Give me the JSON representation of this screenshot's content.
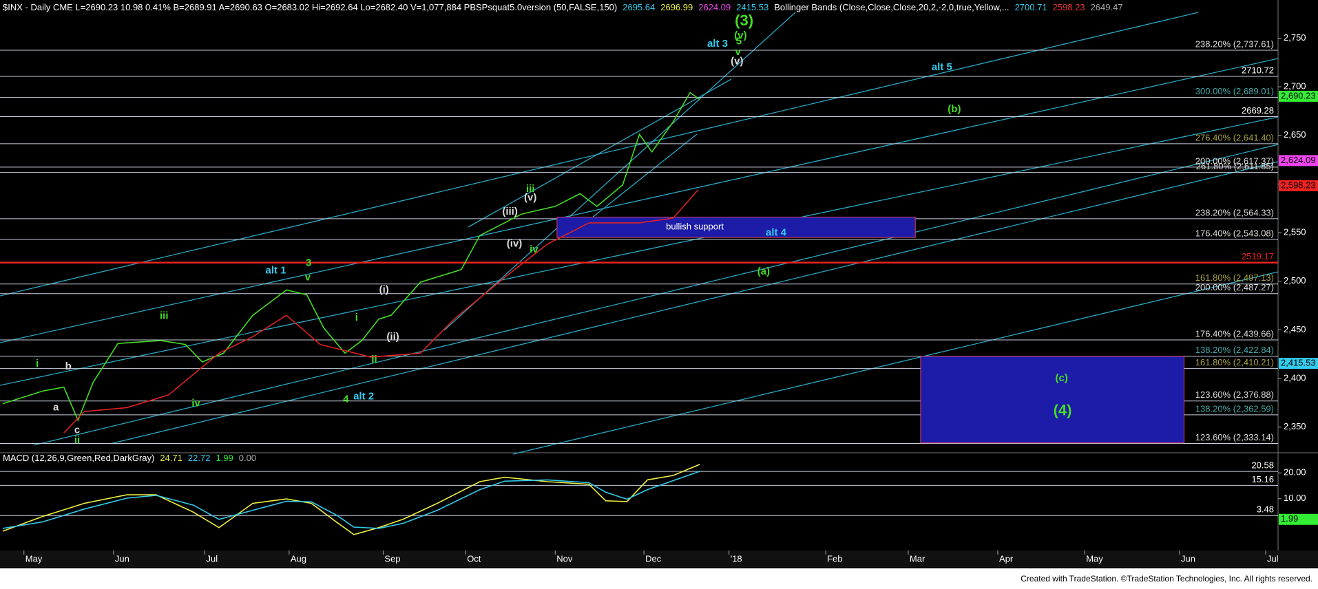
{
  "chart_data": [
    {
      "type": "line",
      "header": [
        {
          "text": "$INX - Daily CME  L=2690.23  10.98  0.41%  B=2689.91  A=2690.63  O=2683.02  Hi=2692.64  Lo=2682.40  V=1,077,884  PBSPsquat5.0version (50,FALSE,150)",
          "color": "#ffffff"
        },
        {
          "text": "2695.64",
          "color": "#33ccee"
        },
        {
          "text": "2696.99",
          "color": "#eeee44"
        },
        {
          "text": "2624.09",
          "color": "#ee44ee"
        },
        {
          "text": "2415.53",
          "color": "#33ccee"
        },
        {
          "text": "Bollinger Bands (Close,Close,Close,20,2,-2,0,true,Yellow,...",
          "color": "#ffffff"
        },
        {
          "text": "2700.71",
          "color": "#33ccee"
        },
        {
          "text": "2598.23",
          "color": "#ee3333"
        },
        {
          "text": "2649.47",
          "color": "#aaaaaa"
        }
      ],
      "xlim": [
        -0.27,
        14.14
      ],
      "xticks": [
        {
          "value": 0,
          "label": "May"
        },
        {
          "value": 1.01,
          "label": "Jun"
        },
        {
          "value": 2.04,
          "label": "Jul"
        },
        {
          "value": 2.99,
          "label": "Aug"
        },
        {
          "value": 4.05,
          "label": "Sep"
        },
        {
          "value": 4.98,
          "label": "Oct"
        },
        {
          "value": 5.99,
          "label": "Nov"
        },
        {
          "value": 6.99,
          "label": "Dec"
        },
        {
          "value": 7.95,
          "label": "'18"
        },
        {
          "value": 9.04,
          "label": "Feb"
        },
        {
          "value": 9.97,
          "label": "Mar"
        },
        {
          "value": 10.98,
          "label": "Apr"
        },
        {
          "value": 11.96,
          "label": "May"
        },
        {
          "value": 13.03,
          "label": "Jun"
        },
        {
          "value": 14.0,
          "label": "Jul"
        }
      ],
      "ylim": [
        2325,
        2785
      ],
      "yticks": [
        {
          "value": 2350,
          "label": "2,350"
        },
        {
          "value": 2400,
          "label": "2,400"
        },
        {
          "value": 2450,
          "label": "2,450"
        },
        {
          "value": 2500,
          "label": "2,500"
        },
        {
          "value": 2550,
          "label": "2,550"
        },
        {
          "value": 2600,
          "label": "2,600"
        },
        {
          "value": 2650,
          "label": "2,650"
        },
        {
          "value": 2700,
          "label": "2,700"
        },
        {
          "value": 2750,
          "label": "2,750"
        }
      ],
      "series": [
        {
          "color": "#44dd22",
          "x": [
            -0.24,
            0.21,
            0.45,
            0.61,
            0.78,
            1.06,
            1.54,
            1.82,
            2.01,
            2.25,
            2.58,
            2.96,
            3.19,
            3.38,
            3.62,
            3.81,
            4.0,
            4.14,
            4.47,
            4.93,
            5.14,
            5.61,
            5.99,
            6.27,
            6.46,
            6.75,
            6.94,
            7.08,
            7.32,
            7.51,
            7.62
          ],
          "values": [
            2374,
            2387,
            2391,
            2357,
            2396,
            2436,
            2439,
            2435,
            2417,
            2426,
            2465,
            2491,
            2486,
            2452,
            2426,
            2439,
            2461,
            2465,
            2499,
            2512,
            2547,
            2569,
            2577,
            2590,
            2577,
            2599,
            2651,
            2633,
            2664,
            2694,
            2687
          ]
        },
        {
          "color": "#dd2222",
          "x": [
            0.45,
            0.68,
            1.16,
            1.63,
            2.2,
            2.58,
            2.96,
            3.34,
            3.91,
            4.47,
            4.85,
            5.42,
            5.9,
            6.37,
            6.94,
            7.32,
            7.6
          ],
          "values": [
            2344,
            2366,
            2370,
            2383,
            2426,
            2443,
            2465,
            2435,
            2422,
            2426,
            2461,
            2504,
            2538,
            2560,
            2560,
            2565,
            2594
          ]
        }
      ],
      "levels": [
        {
          "value": 2737.61,
          "label": "238.20% (2,737.61)",
          "color": "#dddddd"
        },
        {
          "value": 2710.72,
          "label": "2710.72",
          "color": "#ffffff"
        },
        {
          "value": 2689.01,
          "label": "300.00% (2,689.01)",
          "color": "#44aaaa"
        },
        {
          "value": 2669.28,
          "label": "2669.28",
          "color": "#ffffff"
        },
        {
          "value": 2641.4,
          "label": "276.40% (2,641.40)",
          "color": "#aaa040"
        },
        {
          "value": 2617.37,
          "label": "200.00% (2,617.37)",
          "color": "#dddddd"
        },
        {
          "value": 2611.85,
          "label": "261.80% (2,611.85)",
          "color": "#dddddd"
        },
        {
          "value": 2564.33,
          "label": "238.20% (2,564.33)",
          "color": "#dddddd"
        },
        {
          "value": 2543.08,
          "label": "176.40% (2,543.08)",
          "color": "#dddddd"
        },
        {
          "value": 2519.17,
          "label": "2519.17",
          "color": "#ee2222"
        },
        {
          "value": 2497.13,
          "label": "161.80% (2,497.13)",
          "color": "#aaa040"
        },
        {
          "value": 2487.27,
          "label": "200.00% (2,487.27)",
          "color": "#dddddd"
        },
        {
          "value": 2439.66,
          "label": "176.40% (2,439.66)",
          "color": "#dddddd"
        },
        {
          "value": 2422.84,
          "label": "138.20% (2,422.84)",
          "color": "#44aaaa"
        },
        {
          "value": 2410.21,
          "label": "161.80% (2,410.21)",
          "color": "#aaa040"
        },
        {
          "value": 2376.88,
          "label": "123.60% (2,376.88)",
          "color": "#dddddd"
        },
        {
          "value": 2362.59,
          "label": "138.20% (2,362.59)",
          "color": "#44aaaa"
        },
        {
          "value": 2333.14,
          "label": "123.60% (2,333.14)",
          "color": "#dddddd"
        }
      ],
      "tags": [
        {
          "value": 2690.23,
          "label": "2,690.23",
          "color": "#33ee33"
        },
        {
          "value": 2624.09,
          "label": "2,624.09",
          "color": "#ee44ee"
        },
        {
          "value": 2598.23,
          "label": "2,598.23",
          "color": "#ee2222"
        },
        {
          "value": 2415.53,
          "label": "2,415.53",
          "color": "#33ccee"
        }
      ],
      "boxes": [
        {
          "x": [
            6.01,
            10.05
          ],
          "y": [
            2545,
            2566
          ],
          "label": "bullish support"
        },
        {
          "x": [
            10.11,
            13.08
          ],
          "y": [
            2333.7,
            2422.8
          ]
        }
      ],
      "annotations": [
        {
          "text": "(3)",
          "x": 8.12,
          "y": 2767.3,
          "color": "#44dd22"
        },
        {
          "text": "(v)",
          "x": 8.08,
          "y": 2752.6,
          "color": "#44dd22"
        },
        {
          "text": "5",
          "x": 8.06,
          "y": 2746.5,
          "color": "#44dd22"
        },
        {
          "text": "alt 3",
          "x": 7.82,
          "y": 2744.0,
          "color": "#33ccee"
        },
        {
          "text": "v",
          "x": 8.05,
          "y": 2735.3,
          "color": "#44dd22"
        },
        {
          "text": "(v)",
          "x": 8.04,
          "y": 2725.8,
          "color": "#dddddd"
        },
        {
          "text": "alt 5",
          "x": 10.35,
          "y": 2719.8,
          "color": "#33ccee"
        },
        {
          "text": "(b)",
          "x": 10.49,
          "y": 2676.6,
          "color": "#44dd22"
        },
        {
          "text": "iii",
          "x": 5.71,
          "y": 2594.5,
          "color": "#44dd22"
        },
        {
          "text": "(v)",
          "x": 5.71,
          "y": 2585.9,
          "color": "#dddddd"
        },
        {
          "text": "(iii)",
          "x": 5.48,
          "y": 2571.2,
          "color": "#dddddd"
        },
        {
          "text": "(iv)",
          "x": 5.53,
          "y": 2538.3,
          "color": "#dddddd"
        },
        {
          "text": "iv",
          "x": 5.75,
          "y": 2532.3,
          "color": "#44dd22"
        },
        {
          "text": "alt 4",
          "x": 8.48,
          "y": 2549.6,
          "color": "#33ccee"
        },
        {
          "text": "(a)",
          "x": 8.34,
          "y": 2509.8,
          "color": "#44dd22"
        },
        {
          "text": "alt 1",
          "x": 2.84,
          "y": 2510.7,
          "color": "#33ccee"
        },
        {
          "text": "3",
          "x": 3.21,
          "y": 2518.5,
          "color": "#44dd22"
        },
        {
          "text": "v",
          "x": 3.2,
          "y": 2503.8,
          "color": "#44dd22"
        },
        {
          "text": "(i)",
          "x": 4.06,
          "y": 2490.8,
          "color": "#dddddd"
        },
        {
          "text": "(ii)",
          "x": 4.16,
          "y": 2442.4,
          "color": "#dddddd"
        },
        {
          "text": "i",
          "x": 3.75,
          "y": 2462.3,
          "color": "#44dd22"
        },
        {
          "text": "ii",
          "x": 3.95,
          "y": 2419.1,
          "color": "#44dd22"
        },
        {
          "text": "iii",
          "x": 1.58,
          "y": 2464.0,
          "color": "#44dd22"
        },
        {
          "text": "i",
          "x": 0.15,
          "y": 2414.8,
          "color": "#44dd22"
        },
        {
          "text": "b",
          "x": 0.5,
          "y": 2412.2,
          "color": "#dddddd"
        },
        {
          "text": "a",
          "x": 0.36,
          "y": 2369.9,
          "color": "#dddddd"
        },
        {
          "text": "c",
          "x": 0.6,
          "y": 2346.5,
          "color": "#dddddd"
        },
        {
          "text": "ii",
          "x": 0.6,
          "y": 2336.2,
          "color": "#44dd22"
        },
        {
          "text": "iv",
          "x": 1.94,
          "y": 2374.2,
          "color": "#44dd22"
        },
        {
          "text": "4",
          "x": 3.63,
          "y": 2378.5,
          "color": "#44dd22"
        },
        {
          "text": "alt 2",
          "x": 3.83,
          "y": 2381.1,
          "color": "#33ccee"
        },
        {
          "text": "(c)",
          "x": 11.7,
          "y": 2400.1,
          "color": "#44dd22"
        },
        {
          "text": "(4)",
          "x": 11.71,
          "y": 2366.4,
          "color": "#44dd22"
        }
      ]
    },
    {
      "type": "line",
      "header": [
        {
          "text": "MACD (12,26,9,Green,Red,DarkGray)",
          "color": "#ffffff"
        },
        {
          "text": "24.71",
          "color": "#eeee44"
        },
        {
          "text": "22.72",
          "color": "#33ccee"
        },
        {
          "text": "1.99",
          "color": "#33ee33"
        },
        {
          "text": "0.00",
          "color": "#aaaaaa"
        }
      ],
      "ylim": [
        -9,
        27
      ],
      "yticks": [
        {
          "value": 20,
          "label": "20.00"
        },
        {
          "value": 10,
          "label": "10.00"
        }
      ],
      "series": [
        {
          "color": "#eeee44",
          "x": [
            -0.24,
            0.21,
            0.68,
            1.16,
            1.49,
            1.91,
            2.2,
            2.58,
            2.96,
            3.24,
            3.53,
            3.72,
            4.0,
            4.28,
            4.66,
            5.14,
            5.42,
            5.9,
            6.37,
            6.56,
            6.8,
            7.03,
            7.32,
            7.62
          ],
          "values": [
            -2.6,
            3.1,
            8.2,
            11.5,
            11.5,
            4.8,
            -1.2,
            8.2,
            9.9,
            8.2,
            0.8,
            -3.9,
            -1.2,
            2.1,
            8.2,
            16.6,
            18.3,
            16.6,
            15.6,
            9.2,
            8.9,
            17.3,
            19.0,
            23.3
          ]
        },
        {
          "color": "#33ccee",
          "x": [
            -0.24,
            0.21,
            0.68,
            1.16,
            1.49,
            1.91,
            2.2,
            2.58,
            2.96,
            3.24,
            3.53,
            3.72,
            4.0,
            4.28,
            4.66,
            5.14,
            5.42,
            5.9,
            6.37,
            6.56,
            6.8,
            7.03,
            7.32,
            7.62
          ],
          "values": [
            -1.5,
            1.0,
            6.0,
            10.2,
            11.3,
            7.5,
            2.0,
            5.5,
            9.0,
            8.8,
            3.5,
            -1.0,
            -1.5,
            0.5,
            5.5,
            13.5,
            16.8,
            17.3,
            16.2,
            12.5,
            9.8,
            13.5,
            17.0,
            20.6
          ]
        }
      ],
      "levels": [
        20.58,
        15.16,
        3.48
      ],
      "tag": {
        "value": 1.99,
        "color": "#33ee33"
      }
    }
  ],
  "footer": "Created with TradeStation. ©TradeStation Technologies, Inc. All rights reserved."
}
